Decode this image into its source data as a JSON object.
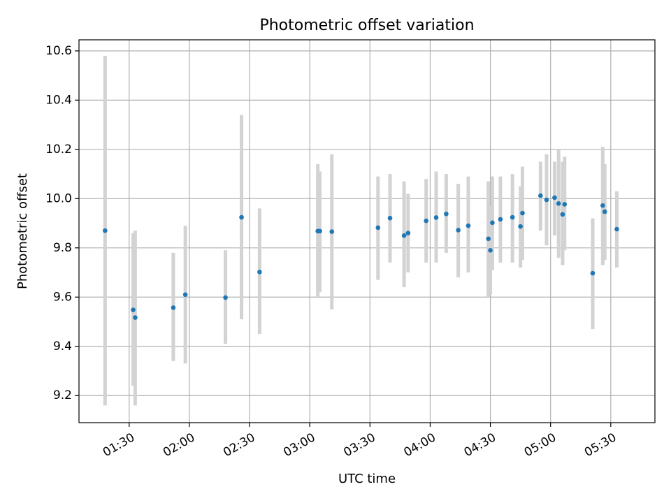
{
  "chart_data": {
    "type": "scatter",
    "title": "Photometric offset variation",
    "xlabel": "UTC time",
    "ylabel": "Photometric offset",
    "x_ticks": [
      "01:30",
      "02:00",
      "02:30",
      "03:00",
      "03:30",
      "04:00",
      "04:30",
      "05:00",
      "05:30"
    ],
    "x_tick_values": [
      "01:30",
      "02:00",
      "02:30",
      "03:00",
      "03:30",
      "04:00",
      "04:30",
      "05:00",
      "05:30"
    ],
    "y_ticks": [
      "9.2",
      "9.4",
      "9.6",
      "9.8",
      "10.0",
      "10.2",
      "10.4",
      "10.6"
    ],
    "xlim": [
      "01:05",
      "05:52"
    ],
    "ylim": [
      9.09,
      10.645
    ],
    "grid": true,
    "colors": {
      "point": "#1f77b4",
      "errorbar": "#d3d3d3",
      "grid": "#b0b0b0"
    },
    "points": [
      {
        "time": "01:18",
        "y": 9.87,
        "err_lo": 9.16,
        "err_hi": 10.58
      },
      {
        "time": "01:32",
        "y": 9.548,
        "err_lo": 9.24,
        "err_hi": 9.86
      },
      {
        "time": "01:33",
        "y": 9.517,
        "err_lo": 9.16,
        "err_hi": 9.87
      },
      {
        "time": "01:52",
        "y": 9.557,
        "err_lo": 9.34,
        "err_hi": 9.78
      },
      {
        "time": "01:58",
        "y": 9.61,
        "err_lo": 9.33,
        "err_hi": 9.89
      },
      {
        "time": "02:18",
        "y": 9.598,
        "err_lo": 9.41,
        "err_hi": 9.79
      },
      {
        "time": "02:26",
        "y": 9.924,
        "err_lo": 9.51,
        "err_hi": 10.34
      },
      {
        "time": "02:35",
        "y": 9.702,
        "err_lo": 9.45,
        "err_hi": 9.96
      },
      {
        "time": "03:04",
        "y": 9.868,
        "err_lo": 9.6,
        "err_hi": 10.14
      },
      {
        "time": "03:05",
        "y": 9.868,
        "err_lo": 9.62,
        "err_hi": 10.11
      },
      {
        "time": "03:11",
        "y": 9.866,
        "err_lo": 9.55,
        "err_hi": 10.18
      },
      {
        "time": "03:34",
        "y": 9.882,
        "err_lo": 9.67,
        "err_hi": 10.09
      },
      {
        "time": "03:40",
        "y": 9.921,
        "err_lo": 9.74,
        "err_hi": 10.1
      },
      {
        "time": "03:47",
        "y": 9.85,
        "err_lo": 9.64,
        "err_hi": 10.07
      },
      {
        "time": "03:49",
        "y": 9.86,
        "err_lo": 9.7,
        "err_hi": 10.02
      },
      {
        "time": "03:58",
        "y": 9.91,
        "err_lo": 9.74,
        "err_hi": 10.08
      },
      {
        "time": "04:03",
        "y": 9.923,
        "err_lo": 9.74,
        "err_hi": 10.11
      },
      {
        "time": "04:08",
        "y": 9.938,
        "err_lo": 9.78,
        "err_hi": 10.1
      },
      {
        "time": "04:14",
        "y": 9.872,
        "err_lo": 9.68,
        "err_hi": 10.06
      },
      {
        "time": "04:19",
        "y": 9.89,
        "err_lo": 9.7,
        "err_hi": 10.09
      },
      {
        "time": "04:29",
        "y": 9.837,
        "err_lo": 9.6,
        "err_hi": 10.07
      },
      {
        "time": "04:30",
        "y": 9.79,
        "err_lo": 9.61,
        "err_hi": 9.97
      },
      {
        "time": "04:31",
        "y": 9.902,
        "err_lo": 9.71,
        "err_hi": 10.09
      },
      {
        "time": "04:35",
        "y": 9.916,
        "err_lo": 9.74,
        "err_hi": 10.09
      },
      {
        "time": "04:41",
        "y": 9.924,
        "err_lo": 9.74,
        "err_hi": 10.1
      },
      {
        "time": "04:45",
        "y": 9.887,
        "err_lo": 9.72,
        "err_hi": 10.05
      },
      {
        "time": "04:46",
        "y": 9.941,
        "err_lo": 9.75,
        "err_hi": 10.13
      },
      {
        "time": "04:55",
        "y": 10.012,
        "err_lo": 9.87,
        "err_hi": 10.15
      },
      {
        "time": "04:58",
        "y": 9.995,
        "err_lo": 9.81,
        "err_hi": 10.18
      },
      {
        "time": "05:02",
        "y": 10.004,
        "err_lo": 9.85,
        "err_hi": 10.15
      },
      {
        "time": "05:04",
        "y": 9.98,
        "err_lo": 9.76,
        "err_hi": 10.2
      },
      {
        "time": "05:06",
        "y": 9.936,
        "err_lo": 9.73,
        "err_hi": 10.15
      },
      {
        "time": "05:07",
        "y": 9.977,
        "err_lo": 9.79,
        "err_hi": 10.17
      },
      {
        "time": "05:21",
        "y": 9.697,
        "err_lo": 9.47,
        "err_hi": 9.92
      },
      {
        "time": "05:26",
        "y": 9.972,
        "err_lo": 9.73,
        "err_hi": 10.21
      },
      {
        "time": "05:27",
        "y": 9.947,
        "err_lo": 9.75,
        "err_hi": 10.14
      },
      {
        "time": "05:33",
        "y": 9.876,
        "err_lo": 9.72,
        "err_hi": 10.03
      }
    ]
  }
}
